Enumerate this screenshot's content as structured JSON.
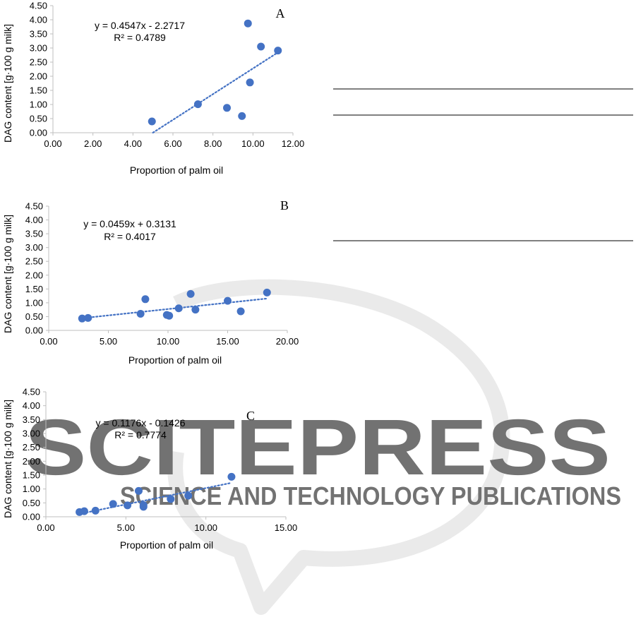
{
  "colors": {
    "point": "#4472C4",
    "trend": "#4472C4",
    "axis": "#bfbfbf",
    "rule": "#000000",
    "watermark": "#d9d9d9"
  },
  "watermark": {
    "line1": "SCITEPRESS",
    "line2": "SCIENCE AND TECHNOLOGY PUBLICATIONS"
  },
  "chart_data": [
    {
      "type": "scatter",
      "panel": "A",
      "xlabel": "Proportion of palm oil",
      "ylabel": "DAG content [g·100 g milk]",
      "xlim": [
        0,
        12
      ],
      "ylim": [
        0,
        4.5
      ],
      "xticks": [
        "0.00",
        "2.00",
        "4.00",
        "6.00",
        "8.00",
        "10.00",
        "12.00"
      ],
      "yticks": [
        "0.00",
        "0.50",
        "1.00",
        "1.50",
        "2.00",
        "2.50",
        "3.00",
        "3.50",
        "4.00",
        "4.50"
      ],
      "equation": "y = 0.4547x - 2.2717",
      "r2": "R² = 0.4789",
      "trend": {
        "slope": 0.4547,
        "intercept": -2.2717,
        "x_from": 5.0,
        "x_to": 11.3
      },
      "points": [
        {
          "x": 4.95,
          "y": 0.4
        },
        {
          "x": 7.25,
          "y": 1.01
        },
        {
          "x": 8.7,
          "y": 0.88
        },
        {
          "x": 9.45,
          "y": 0.59
        },
        {
          "x": 9.75,
          "y": 3.87
        },
        {
          "x": 9.85,
          "y": 1.78
        },
        {
          "x": 10.4,
          "y": 3.05
        },
        {
          "x": 11.25,
          "y": 2.91
        }
      ]
    },
    {
      "type": "scatter",
      "panel": "B",
      "xlabel": "Proportion of palm oil",
      "ylabel": "DAG content [g·100 g milk]",
      "xlim": [
        0,
        20
      ],
      "ylim": [
        0,
        4.5
      ],
      "xticks": [
        "0.00",
        "5.00",
        "10.00",
        "15.00",
        "20.00"
      ],
      "yticks": [
        "0.00",
        "0.50",
        "1.00",
        "1.50",
        "2.00",
        "2.50",
        "3.00",
        "3.50",
        "4.00",
        "4.50"
      ],
      "equation": "y = 0.0459x + 0.3131",
      "r2": "R² = 0.4017",
      "trend": {
        "slope": 0.0459,
        "intercept": 0.3131,
        "x_from": 2.8,
        "x_to": 18.3
      },
      "points": [
        {
          "x": 2.8,
          "y": 0.43
        },
        {
          "x": 3.3,
          "y": 0.45
        },
        {
          "x": 7.7,
          "y": 0.6
        },
        {
          "x": 8.1,
          "y": 1.13
        },
        {
          "x": 9.9,
          "y": 0.56
        },
        {
          "x": 10.1,
          "y": 0.53
        },
        {
          "x": 10.9,
          "y": 0.8
        },
        {
          "x": 11.9,
          "y": 1.32
        },
        {
          "x": 12.3,
          "y": 0.75
        },
        {
          "x": 15.0,
          "y": 1.07
        },
        {
          "x": 16.1,
          "y": 0.69
        },
        {
          "x": 18.3,
          "y": 1.37
        }
      ]
    },
    {
      "type": "scatter",
      "panel": "C",
      "xlabel": "Proportion of palm oil",
      "ylabel": "DAG content [g·100 g milk]",
      "xlim": [
        0,
        15
      ],
      "ylim": [
        0,
        4.5
      ],
      "xticks": [
        "0.00",
        "5.00",
        "10.00",
        "15.00"
      ],
      "yticks": [
        "0.00",
        "0.50",
        "1.00",
        "1.50",
        "2.00",
        "2.50",
        "3.00",
        "3.50",
        "4.00",
        "4.50"
      ],
      "equation": "y = 0.1176x - 0.1426",
      "r2": "R² = 0.7774",
      "trend": {
        "slope": 0.1176,
        "intercept": -0.1426,
        "x_from": 2.1,
        "x_to": 11.6
      },
      "points": [
        {
          "x": 2.1,
          "y": 0.17
        },
        {
          "x": 2.4,
          "y": 0.2
        },
        {
          "x": 3.1,
          "y": 0.22
        },
        {
          "x": 4.2,
          "y": 0.46
        },
        {
          "x": 5.1,
          "y": 0.41
        },
        {
          "x": 5.8,
          "y": 0.93
        },
        {
          "x": 6.1,
          "y": 0.36
        },
        {
          "x": 6.1,
          "y": 0.42
        },
        {
          "x": 7.8,
          "y": 0.64
        },
        {
          "x": 8.9,
          "y": 0.76
        },
        {
          "x": 11.6,
          "y": 1.44
        }
      ]
    }
  ]
}
